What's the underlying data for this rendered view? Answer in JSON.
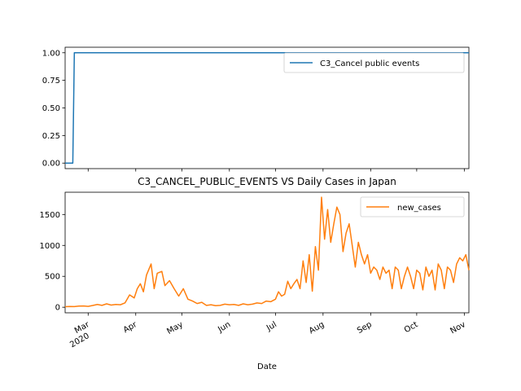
{
  "chart_data": [
    {
      "type": "line",
      "title": "",
      "xlabel": "",
      "ylabel": "",
      "ylim": [
        -0.05,
        1.05
      ],
      "yticks": [
        "0.00",
        "0.25",
        "0.50",
        "0.75",
        "1.00"
      ],
      "legend": "top-right",
      "series": [
        {
          "name": "C3_Cancel public events",
          "color": "#1f77b4",
          "values_note": "",
          "points": [
            [
              "2020-02-15",
              0
            ],
            [
              "2020-02-20",
              0
            ],
            [
              "2020-02-21",
              1
            ],
            [
              "2020-05-29",
              1
            ],
            [
              "2020-05-31",
              1
            ],
            [
              "2020-11-04",
              1
            ]
          ]
        }
      ]
    },
    {
      "type": "line",
      "title": "C3_CANCEL_PUBLIC_EVENTS VS Daily Cases in Japan",
      "xlabel": "Date",
      "ylabel": "",
      "ylim": [
        -90,
        1860
      ],
      "yticks": [
        "0",
        "500",
        "1000",
        "1500"
      ],
      "legend": "top-right",
      "xtick_labels": [
        {
          "date": "2020-03-01",
          "label": "Mar",
          "sub": "2020"
        },
        {
          "date": "2020-04-01",
          "label": "Apr"
        },
        {
          "date": "2020-05-01",
          "label": "May"
        },
        {
          "date": "2020-06-01",
          "label": "Jun"
        },
        {
          "date": "2020-07-01",
          "label": "Jul"
        },
        {
          "date": "2020-08-01",
          "label": "Aug"
        },
        {
          "date": "2020-09-01",
          "label": "Sep"
        },
        {
          "date": "2020-10-01",
          "label": "Oct"
        },
        {
          "date": "2020-11-01",
          "label": "Nov"
        }
      ],
      "series": [
        {
          "name": "new_cases",
          "color": "#ff7f0e",
          "points": [
            [
              "2020-02-15",
              8
            ],
            [
              "2020-02-18",
              12
            ],
            [
              "2020-02-21",
              10
            ],
            [
              "2020-02-24",
              18
            ],
            [
              "2020-02-27",
              20
            ],
            [
              "2020-03-01",
              14
            ],
            [
              "2020-03-04",
              28
            ],
            [
              "2020-03-07",
              45
            ],
            [
              "2020-03-10",
              30
            ],
            [
              "2020-03-13",
              55
            ],
            [
              "2020-03-16",
              35
            ],
            [
              "2020-03-19",
              45
            ],
            [
              "2020-03-22",
              40
            ],
            [
              "2020-03-25",
              70
            ],
            [
              "2020-03-28",
              200
            ],
            [
              "2020-03-31",
              150
            ],
            [
              "2020-04-02",
              300
            ],
            [
              "2020-04-04",
              380
            ],
            [
              "2020-04-06",
              250
            ],
            [
              "2020-04-08",
              520
            ],
            [
              "2020-04-11",
              700
            ],
            [
              "2020-04-13",
              300
            ],
            [
              "2020-04-15",
              550
            ],
            [
              "2020-04-18",
              580
            ],
            [
              "2020-04-20",
              350
            ],
            [
              "2020-04-23",
              430
            ],
            [
              "2020-04-26",
              300
            ],
            [
              "2020-04-29",
              180
            ],
            [
              "2020-05-02",
              300
            ],
            [
              "2020-05-05",
              130
            ],
            [
              "2020-05-08",
              100
            ],
            [
              "2020-05-11",
              60
            ],
            [
              "2020-05-14",
              80
            ],
            [
              "2020-05-17",
              30
            ],
            [
              "2020-05-20",
              40
            ],
            [
              "2020-05-23",
              25
            ],
            [
              "2020-05-26",
              30
            ],
            [
              "2020-05-29",
              50
            ],
            [
              "2020-06-01",
              40
            ],
            [
              "2020-06-04",
              45
            ],
            [
              "2020-06-07",
              30
            ],
            [
              "2020-06-10",
              55
            ],
            [
              "2020-06-13",
              40
            ],
            [
              "2020-06-16",
              50
            ],
            [
              "2020-06-19",
              70
            ],
            [
              "2020-06-22",
              60
            ],
            [
              "2020-06-25",
              100
            ],
            [
              "2020-06-28",
              90
            ],
            [
              "2020-07-01",
              130
            ],
            [
              "2020-07-03",
              250
            ],
            [
              "2020-07-05",
              180
            ],
            [
              "2020-07-07",
              210
            ],
            [
              "2020-07-09",
              420
            ],
            [
              "2020-07-11",
              300
            ],
            [
              "2020-07-13",
              380
            ],
            [
              "2020-07-15",
              450
            ],
            [
              "2020-07-17",
              300
            ],
            [
              "2020-07-19",
              750
            ],
            [
              "2020-07-21",
              400
            ],
            [
              "2020-07-23",
              850
            ],
            [
              "2020-07-25",
              260
            ],
            [
              "2020-07-27",
              980
            ],
            [
              "2020-07-29",
              600
            ],
            [
              "2020-07-31",
              1780
            ],
            [
              "2020-08-02",
              1100
            ],
            [
              "2020-08-04",
              1580
            ],
            [
              "2020-08-06",
              1050
            ],
            [
              "2020-08-08",
              1350
            ],
            [
              "2020-08-10",
              1620
            ],
            [
              "2020-08-12",
              1500
            ],
            [
              "2020-08-14",
              900
            ],
            [
              "2020-08-16",
              1200
            ],
            [
              "2020-08-18",
              1350
            ],
            [
              "2020-08-20",
              1000
            ],
            [
              "2020-08-22",
              650
            ],
            [
              "2020-08-24",
              1050
            ],
            [
              "2020-08-26",
              850
            ],
            [
              "2020-08-28",
              700
            ],
            [
              "2020-08-30",
              850
            ],
            [
              "2020-09-01",
              550
            ],
            [
              "2020-09-03",
              650
            ],
            [
              "2020-09-05",
              600
            ],
            [
              "2020-09-07",
              450
            ],
            [
              "2020-09-09",
              650
            ],
            [
              "2020-09-11",
              550
            ],
            [
              "2020-09-13",
              600
            ],
            [
              "2020-09-15",
              300
            ],
            [
              "2020-09-17",
              650
            ],
            [
              "2020-09-19",
              600
            ],
            [
              "2020-09-21",
              300
            ],
            [
              "2020-09-23",
              500
            ],
            [
              "2020-09-25",
              650
            ],
            [
              "2020-09-27",
              500
            ],
            [
              "2020-09-29",
              300
            ],
            [
              "2020-10-01",
              600
            ],
            [
              "2020-10-03",
              550
            ],
            [
              "2020-10-05",
              280
            ],
            [
              "2020-10-07",
              650
            ],
            [
              "2020-10-09",
              500
            ],
            [
              "2020-10-11",
              600
            ],
            [
              "2020-10-13",
              280
            ],
            [
              "2020-10-15",
              700
            ],
            [
              "2020-10-17",
              600
            ],
            [
              "2020-10-19",
              300
            ],
            [
              "2020-10-21",
              650
            ],
            [
              "2020-10-23",
              600
            ],
            [
              "2020-10-25",
              400
            ],
            [
              "2020-10-27",
              700
            ],
            [
              "2020-10-29",
              800
            ],
            [
              "2020-10-31",
              750
            ],
            [
              "2020-11-02",
              850
            ],
            [
              "2020-11-04",
              600
            ]
          ]
        }
      ]
    }
  ],
  "x_range": [
    "2020-02-15",
    "2020-11-04"
  ]
}
